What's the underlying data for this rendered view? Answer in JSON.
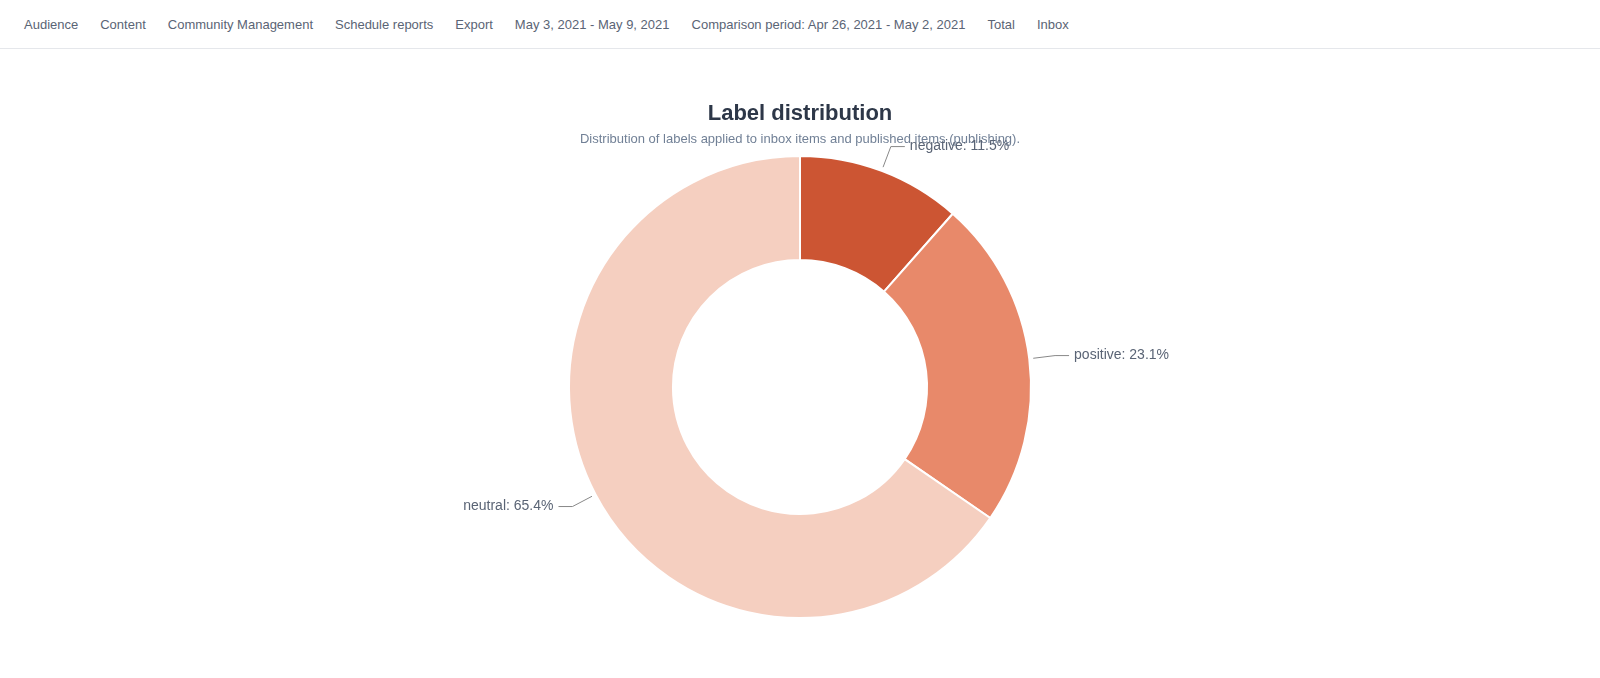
{
  "chart_data": {
    "type": "doughnut",
    "title": "Label distribution",
    "subtitle": "Distribution of labels applied to inbox items and published items (publishing).",
    "categories": [
      "negative",
      "positive",
      "neutral"
    ],
    "values": [
      11.5,
      23.1,
      65.4
    ],
    "value_labels": [
      "negative: 11.5%",
      "positive: 23.1%",
      "neutral: 65.4%"
    ],
    "data_labels": true,
    "colors": [
      "#cc5533",
      "#e8896a",
      "#f5cfc0"
    ],
    "legend": false,
    "annotations": [
      "Audience",
      "Content",
      "Community Management",
      "Schedule reports",
      "Export",
      "May 3, 2021 - May 9, 2021",
      "Comparison period: Apr 26, 2021 - May 2, 2021",
      "Total",
      "Inbox"
    ]
  }
}
